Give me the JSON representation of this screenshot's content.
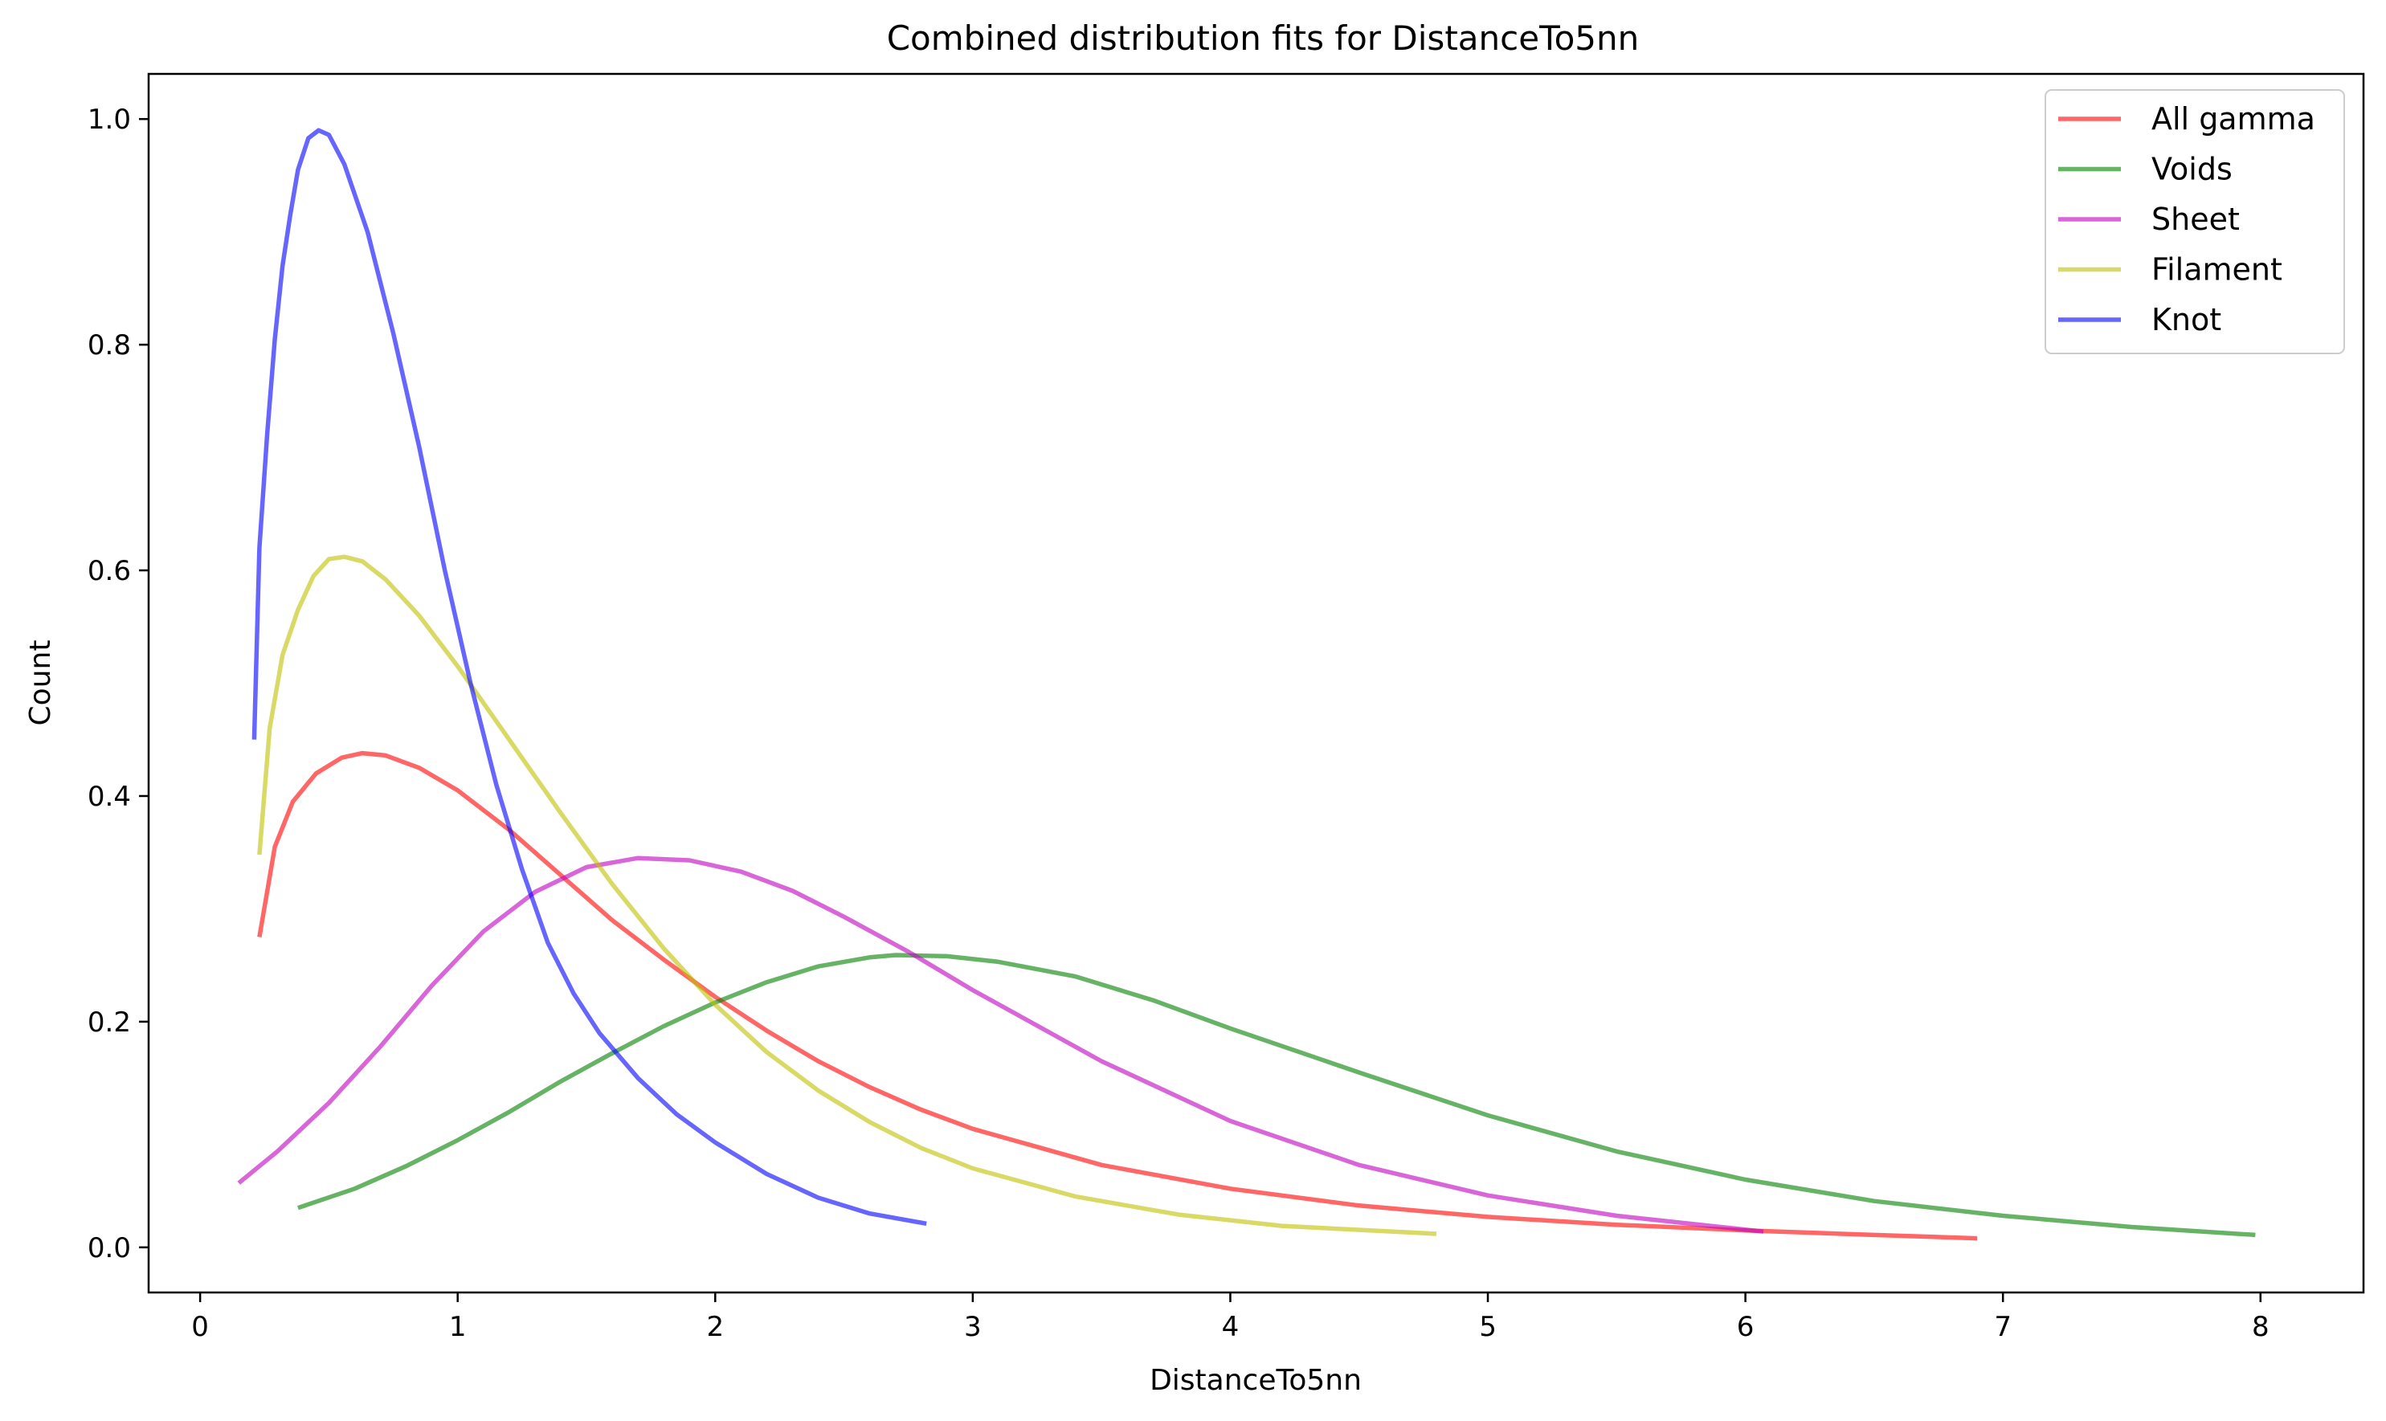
{
  "chart_data": {
    "type": "line",
    "title": "Combined distribution fits for DistanceTo5nn",
    "xlabel": "DistanceTo5nn",
    "ylabel": "Count",
    "xlim": [
      -0.2,
      8.4
    ],
    "ylim": [
      -0.04,
      1.04
    ],
    "xticks": [
      0,
      1,
      2,
      3,
      4,
      5,
      6,
      7,
      8
    ],
    "xtick_labels": [
      "0",
      "1",
      "2",
      "3",
      "4",
      "5",
      "6",
      "7",
      "8"
    ],
    "yticks": [
      0.0,
      0.2,
      0.4,
      0.6,
      0.8,
      1.0
    ],
    "ytick_labels": [
      "0.0",
      "0.2",
      "0.4",
      "0.6",
      "0.8",
      "1.0"
    ],
    "grid": false,
    "legend_position": "top-right",
    "series": [
      {
        "name": "All gamma",
        "color": "#ff0000",
        "points": [
          [
            0.23,
            0.275
          ],
          [
            0.29,
            0.355
          ],
          [
            0.36,
            0.395
          ],
          [
            0.45,
            0.42
          ],
          [
            0.55,
            0.434
          ],
          [
            0.63,
            0.438
          ],
          [
            0.72,
            0.436
          ],
          [
            0.85,
            0.425
          ],
          [
            1.0,
            0.405
          ],
          [
            1.2,
            0.37
          ],
          [
            1.4,
            0.33
          ],
          [
            1.6,
            0.29
          ],
          [
            1.8,
            0.255
          ],
          [
            2.0,
            0.222
          ],
          [
            2.2,
            0.192
          ],
          [
            2.4,
            0.165
          ],
          [
            2.6,
            0.142
          ],
          [
            2.8,
            0.122
          ],
          [
            3.0,
            0.105
          ],
          [
            3.5,
            0.073
          ],
          [
            4.0,
            0.052
          ],
          [
            4.5,
            0.037
          ],
          [
            5.0,
            0.027
          ],
          [
            5.5,
            0.02
          ],
          [
            6.0,
            0.015
          ],
          [
            6.5,
            0.011
          ],
          [
            6.9,
            0.008
          ]
        ]
      },
      {
        "name": "Voids",
        "color": "#008000",
        "points": [
          [
            0.38,
            0.035
          ],
          [
            0.6,
            0.052
          ],
          [
            0.8,
            0.072
          ],
          [
            1.0,
            0.095
          ],
          [
            1.2,
            0.12
          ],
          [
            1.4,
            0.147
          ],
          [
            1.6,
            0.172
          ],
          [
            1.8,
            0.196
          ],
          [
            2.0,
            0.217
          ],
          [
            2.2,
            0.235
          ],
          [
            2.4,
            0.249
          ],
          [
            2.6,
            0.257
          ],
          [
            2.7,
            0.259
          ],
          [
            2.9,
            0.258
          ],
          [
            3.1,
            0.253
          ],
          [
            3.4,
            0.24
          ],
          [
            3.7,
            0.219
          ],
          [
            4.0,
            0.194
          ],
          [
            4.5,
            0.155
          ],
          [
            5.0,
            0.117
          ],
          [
            5.5,
            0.085
          ],
          [
            6.0,
            0.06
          ],
          [
            6.5,
            0.041
          ],
          [
            7.0,
            0.028
          ],
          [
            7.5,
            0.018
          ],
          [
            7.98,
            0.011
          ]
        ]
      },
      {
        "name": "Sheet",
        "color": "#c000c0",
        "points": [
          [
            0.15,
            0.057
          ],
          [
            0.3,
            0.085
          ],
          [
            0.5,
            0.128
          ],
          [
            0.7,
            0.178
          ],
          [
            0.9,
            0.232
          ],
          [
            1.1,
            0.28
          ],
          [
            1.3,
            0.315
          ],
          [
            1.5,
            0.337
          ],
          [
            1.7,
            0.345
          ],
          [
            1.9,
            0.343
          ],
          [
            2.1,
            0.333
          ],
          [
            2.3,
            0.316
          ],
          [
            2.5,
            0.293
          ],
          [
            2.75,
            0.262
          ],
          [
            3.0,
            0.228
          ],
          [
            3.5,
            0.165
          ],
          [
            4.0,
            0.112
          ],
          [
            4.5,
            0.073
          ],
          [
            5.0,
            0.046
          ],
          [
            5.5,
            0.028
          ],
          [
            6.07,
            0.014
          ]
        ]
      },
      {
        "name": "Filament",
        "color": "#bfbf00",
        "points": [
          [
            0.23,
            0.348
          ],
          [
            0.27,
            0.46
          ],
          [
            0.32,
            0.525
          ],
          [
            0.38,
            0.565
          ],
          [
            0.44,
            0.595
          ],
          [
            0.5,
            0.61
          ],
          [
            0.56,
            0.612
          ],
          [
            0.63,
            0.608
          ],
          [
            0.72,
            0.592
          ],
          [
            0.85,
            0.56
          ],
          [
            1.0,
            0.515
          ],
          [
            1.2,
            0.45
          ],
          [
            1.4,
            0.385
          ],
          [
            1.6,
            0.322
          ],
          [
            1.8,
            0.265
          ],
          [
            2.0,
            0.215
          ],
          [
            2.2,
            0.173
          ],
          [
            2.4,
            0.139
          ],
          [
            2.6,
            0.111
          ],
          [
            2.8,
            0.088
          ],
          [
            3.0,
            0.07
          ],
          [
            3.4,
            0.045
          ],
          [
            3.8,
            0.029
          ],
          [
            4.2,
            0.019
          ],
          [
            4.8,
            0.012
          ]
        ]
      },
      {
        "name": "Knot",
        "color": "#0000ff",
        "points": [
          [
            0.21,
            0.45
          ],
          [
            0.23,
            0.62
          ],
          [
            0.26,
            0.72
          ],
          [
            0.29,
            0.805
          ],
          [
            0.32,
            0.87
          ],
          [
            0.35,
            0.915
          ],
          [
            0.38,
            0.955
          ],
          [
            0.42,
            0.983
          ],
          [
            0.46,
            0.99
          ],
          [
            0.5,
            0.986
          ],
          [
            0.56,
            0.96
          ],
          [
            0.65,
            0.9
          ],
          [
            0.75,
            0.81
          ],
          [
            0.85,
            0.71
          ],
          [
            0.95,
            0.6
          ],
          [
            1.05,
            0.5
          ],
          [
            1.15,
            0.41
          ],
          [
            1.25,
            0.335
          ],
          [
            1.35,
            0.27
          ],
          [
            1.45,
            0.225
          ],
          [
            1.55,
            0.19
          ],
          [
            1.7,
            0.15
          ],
          [
            1.85,
            0.118
          ],
          [
            2.0,
            0.093
          ],
          [
            2.2,
            0.065
          ],
          [
            2.4,
            0.044
          ],
          [
            2.6,
            0.03
          ],
          [
            2.82,
            0.021
          ]
        ]
      }
    ]
  }
}
